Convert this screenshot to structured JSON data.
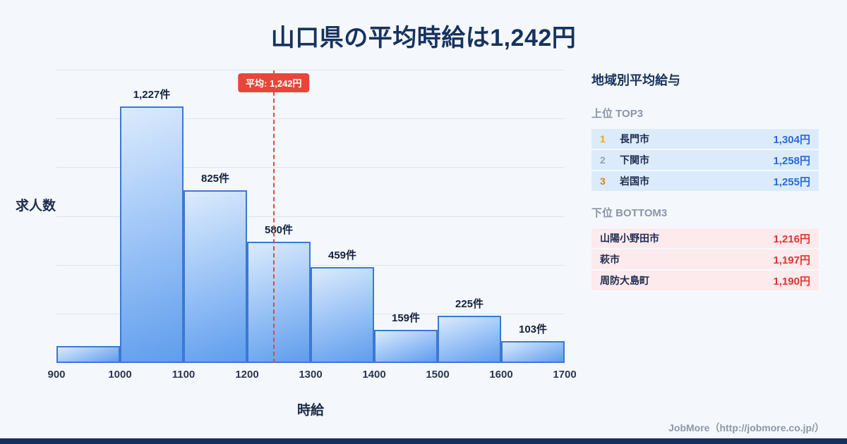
{
  "title": "山口県の平均時給は1,242円",
  "chart_data": {
    "type": "bar",
    "title": "山口県の平均時給は1,242円",
    "xlabel": "時給",
    "ylabel": "求人数",
    "bin_edges": [
      900,
      1000,
      1100,
      1200,
      1300,
      1400,
      1500,
      1600,
      1700
    ],
    "categories": [
      "900-1000",
      "1000-1100",
      "1100-1200",
      "1200-1300",
      "1300-1400",
      "1400-1500",
      "1500-1600",
      "1600-1700"
    ],
    "values": [
      80,
      1227,
      825,
      580,
      459,
      159,
      225,
      103
    ],
    "labels": [
      "",
      "1,227件",
      "825件",
      "580件",
      "459件",
      "159件",
      "225件",
      "103件"
    ],
    "mean_line": {
      "x": 1242,
      "label": "平均: 1,242円"
    },
    "ylim": [
      0,
      1400
    ],
    "grid": true,
    "legend": false
  },
  "sidebar": {
    "title": "地域別平均給与",
    "top3": {
      "heading": "上位 TOP3",
      "rows": [
        {
          "rank": "1",
          "name": "長門市",
          "value": "1,304円"
        },
        {
          "rank": "2",
          "name": "下関市",
          "value": "1,258円"
        },
        {
          "rank": "3",
          "name": "岩国市",
          "value": "1,255円"
        }
      ]
    },
    "bottom3": {
      "heading": "下位 BOTTOM3",
      "rows": [
        {
          "name": "山陽小野田市",
          "value": "1,216円"
        },
        {
          "name": "萩市",
          "value": "1,197円"
        },
        {
          "name": "周防大島町",
          "value": "1,190円"
        }
      ]
    }
  },
  "footer": {
    "credit": "JobMore（http://jobmore.co.jp/）"
  },
  "colors": {
    "background": "#f4f8fd",
    "title": "#17325f",
    "bar_fill_top": "#dcebfc",
    "bar_fill_bottom": "#5f9ded",
    "bar_border": "#3a79d4",
    "mean_line": "#e4473c",
    "mean_badge_bg": "#e8453b",
    "top3_row_bg": "#dcebfb",
    "bottom3_row_bg": "#fdeaec",
    "top3_value": "#2a68d8",
    "bottom3_value": "#e23333",
    "rank1": "#f0a800",
    "rank2": "#97a1b0",
    "rank3": "#e0821c",
    "accent_bar": "#16305e"
  }
}
